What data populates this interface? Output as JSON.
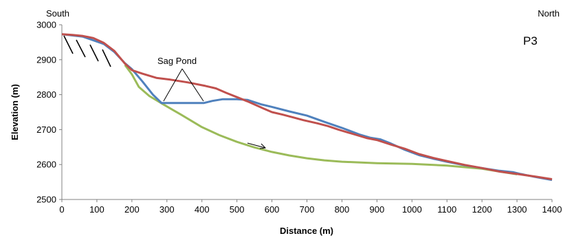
{
  "chart_data": {
    "type": "line",
    "xlabel": "Distance (m)",
    "ylabel": "Elevation (m)",
    "xlim": [
      0,
      1400
    ],
    "ylim": [
      2500,
      3000
    ],
    "x_ticks": [
      0,
      100,
      200,
      300,
      400,
      500,
      600,
      700,
      800,
      900,
      1000,
      1100,
      1200,
      1300,
      1400
    ],
    "y_ticks": [
      2500,
      2600,
      2700,
      2800,
      2900,
      3000
    ],
    "grid": false,
    "legend": "none",
    "annotations": {
      "south": "South",
      "north": "North",
      "panel": "P3",
      "sag_pond": "Sag Pond"
    },
    "colors": {
      "red": "#c0504d",
      "blue": "#4f81bd",
      "green": "#9bbb59"
    },
    "series": [
      {
        "color": "#c0504d",
        "points": [
          [
            0,
            2973
          ],
          [
            30,
            2971
          ],
          [
            60,
            2968
          ],
          [
            90,
            2962
          ],
          [
            120,
            2948
          ],
          [
            150,
            2925
          ],
          [
            180,
            2889
          ],
          [
            200,
            2870
          ],
          [
            230,
            2860
          ],
          [
            270,
            2848
          ],
          [
            310,
            2843
          ],
          [
            360,
            2835
          ],
          [
            410,
            2825
          ],
          [
            440,
            2818
          ],
          [
            470,
            2805
          ],
          [
            500,
            2793
          ],
          [
            530,
            2781
          ],
          [
            570,
            2763
          ],
          [
            600,
            2750
          ],
          [
            630,
            2743
          ],
          [
            660,
            2735
          ],
          [
            690,
            2727
          ],
          [
            730,
            2718
          ],
          [
            760,
            2710
          ],
          [
            790,
            2700
          ],
          [
            830,
            2688
          ],
          [
            870,
            2676
          ],
          [
            900,
            2670
          ],
          [
            940,
            2657
          ],
          [
            980,
            2645
          ],
          [
            1020,
            2630
          ],
          [
            1060,
            2619
          ],
          [
            1100,
            2610
          ],
          [
            1150,
            2599
          ],
          [
            1200,
            2590
          ],
          [
            1250,
            2580
          ],
          [
            1300,
            2573
          ],
          [
            1350,
            2566
          ],
          [
            1400,
            2558
          ]
        ]
      },
      {
        "color": "#4f81bd",
        "points": [
          [
            0,
            2973
          ],
          [
            60,
            2966
          ],
          [
            120,
            2945
          ],
          [
            150,
            2922
          ],
          [
            180,
            2890
          ],
          [
            200,
            2873
          ],
          [
            230,
            2838
          ],
          [
            260,
            2800
          ],
          [
            285,
            2776
          ],
          [
            300,
            2776
          ],
          [
            350,
            2776
          ],
          [
            405,
            2776
          ],
          [
            430,
            2782
          ],
          [
            460,
            2787
          ],
          [
            500,
            2787
          ],
          [
            530,
            2785
          ],
          [
            570,
            2772
          ],
          [
            600,
            2765
          ],
          [
            650,
            2752
          ],
          [
            700,
            2740
          ],
          [
            750,
            2722
          ],
          [
            800,
            2705
          ],
          [
            850,
            2686
          ],
          [
            880,
            2677
          ],
          [
            910,
            2672
          ],
          [
            940,
            2660
          ],
          [
            980,
            2642
          ],
          [
            1020,
            2627
          ],
          [
            1060,
            2617
          ],
          [
            1100,
            2608
          ],
          [
            1150,
            2598
          ],
          [
            1200,
            2590
          ],
          [
            1250,
            2582
          ],
          [
            1290,
            2578
          ],
          [
            1310,
            2573
          ],
          [
            1350,
            2565
          ],
          [
            1400,
            2556
          ]
        ]
      },
      {
        "color": "#9bbb59",
        "points": [
          [
            180,
            2885
          ],
          [
            200,
            2858
          ],
          [
            220,
            2822
          ],
          [
            250,
            2796
          ],
          [
            290,
            2772
          ],
          [
            340,
            2743
          ],
          [
            400,
            2707
          ],
          [
            450,
            2684
          ],
          [
            500,
            2665
          ],
          [
            550,
            2649
          ],
          [
            600,
            2636
          ],
          [
            650,
            2626
          ],
          [
            700,
            2618
          ],
          [
            750,
            2612
          ],
          [
            800,
            2608
          ],
          [
            900,
            2604
          ],
          [
            1000,
            2602
          ],
          [
            1100,
            2597
          ],
          [
            1200,
            2588
          ],
          [
            1250,
            2580
          ],
          [
            1300,
            2572
          ]
        ]
      }
    ]
  }
}
